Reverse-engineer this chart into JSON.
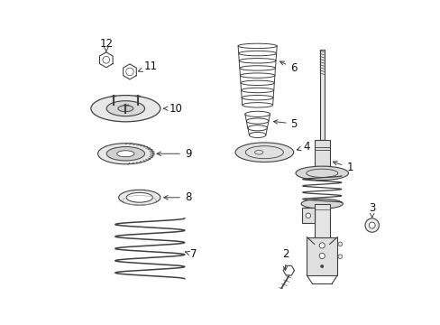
{
  "background_color": "#ffffff",
  "line_color": "#404040",
  "text_color": "#111111",
  "figsize": [
    4.89,
    3.6
  ],
  "dpi": 100
}
